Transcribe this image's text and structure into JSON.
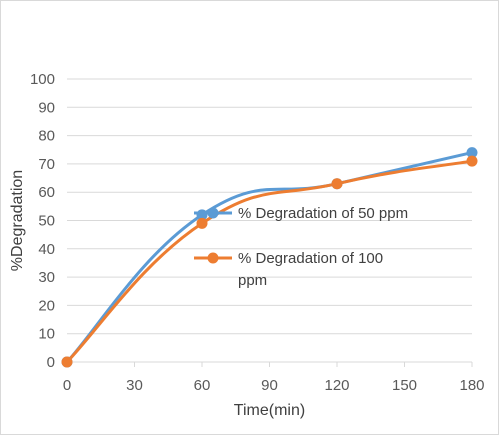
{
  "chart_data": {
    "type": "line",
    "title": "",
    "xlabel": "Time(min)",
    "ylabel": "%Degradation",
    "xlim": [
      0,
      180
    ],
    "ylim": [
      0,
      100
    ],
    "xticks": [
      0,
      30,
      60,
      90,
      120,
      150,
      180
    ],
    "yticks": [
      0,
      10,
      20,
      30,
      40,
      50,
      60,
      70,
      80,
      90,
      100
    ],
    "grid": "horizontal",
    "smooth": true,
    "legend_position": "center-right",
    "series": [
      {
        "name": "% Degradation of 50 ppm",
        "color": "#5b9bd5",
        "x": [
          0,
          60,
          120,
          180
        ],
        "y": [
          0,
          52,
          63,
          74
        ]
      },
      {
        "name": "% Degradation of 100 ppm",
        "legend_lines": [
          "% Degradation of 100",
          "ppm"
        ],
        "color": "#ed7d31",
        "x": [
          0,
          60,
          120,
          180
        ],
        "y": [
          0,
          49,
          63,
          71
        ]
      }
    ]
  }
}
